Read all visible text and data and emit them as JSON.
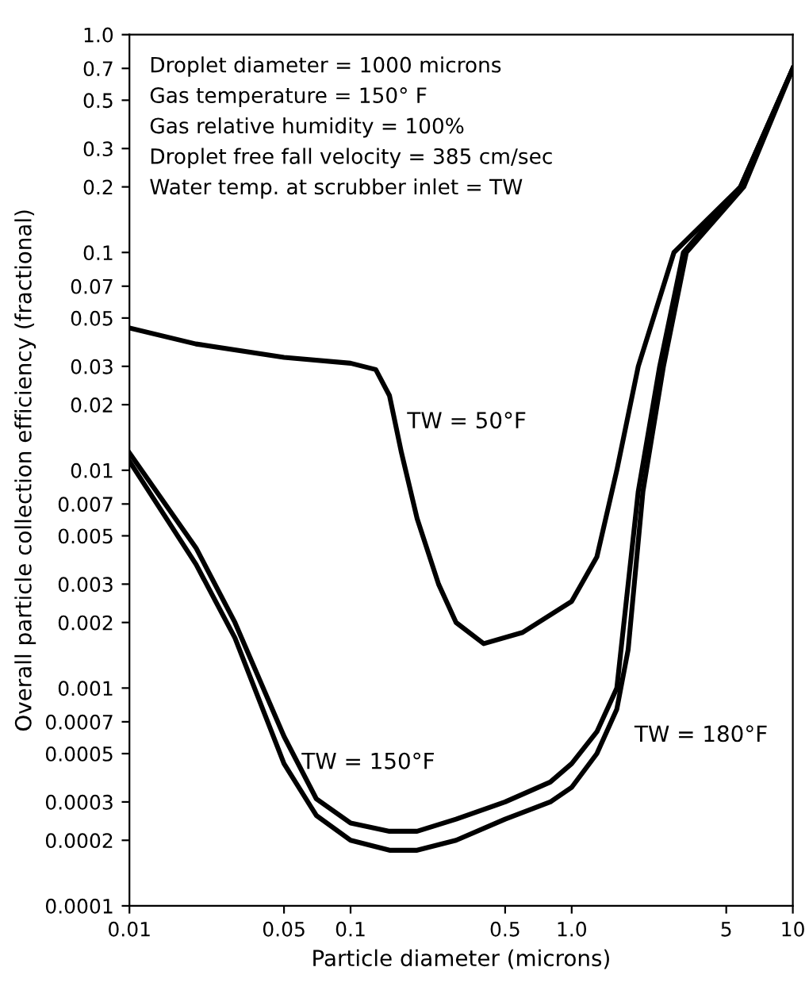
{
  "chart_data": {
    "type": "line",
    "xlabel": "Particle diameter (microns)",
    "ylabel": "Overall particle collection efficiency (fractional)",
    "log": "xy",
    "grid": false,
    "legend": false,
    "marker": "none",
    "line_style": "solid",
    "xlim": [
      0.01,
      10
    ],
    "xticks": [
      0.01,
      0.05,
      0.1,
      0.5,
      {
        "value": 1,
        "label": "1.0"
      },
      5,
      10
    ],
    "ylim": [
      0.0001,
      1
    ],
    "yticks": [
      {
        "value": 1,
        "label": "1.0"
      },
      0.7,
      0.5,
      0.3,
      0.2,
      0.1,
      0.07,
      0.05,
      0.03,
      0.02,
      0.01,
      0.007,
      0.005,
      0.003,
      0.002,
      0.001,
      0.0007,
      0.0005,
      0.0003,
      0.0002,
      0.0001
    ],
    "series": [
      {
        "color": "#000000",
        "x": [
          0.01,
          0.02,
          0.05,
          0.1,
          0.13,
          0.15,
          0.17,
          0.2,
          0.25,
          0.3,
          0.4,
          0.6,
          1.0,
          1.3,
          1.6,
          2.0,
          2.9,
          5.8,
          10
        ],
        "values": [
          0.045,
          0.038,
          0.033,
          0.031,
          0.029,
          0.022,
          0.012,
          0.006,
          0.003,
          0.002,
          0.0016,
          0.0018,
          0.0025,
          0.004,
          0.01,
          0.03,
          0.1,
          0.2,
          0.7
        ]
      },
      {
        "color": "#000000",
        "x": [
          0.01,
          0.02,
          0.03,
          0.05,
          0.07,
          0.1,
          0.15,
          0.2,
          0.3,
          0.5,
          0.8,
          1.0,
          1.3,
          1.6,
          2.0,
          2.5,
          3.2,
          5.8,
          10
        ],
        "values": [
          0.012,
          0.0044,
          0.002,
          0.0006,
          0.00031,
          0.00024,
          0.00022,
          0.00022,
          0.00025,
          0.0003,
          0.00037,
          0.00045,
          0.00063,
          0.001,
          0.008,
          0.03,
          0.1,
          0.2,
          0.7
        ]
      },
      {
        "color": "#000000",
        "x": [
          0.01,
          0.02,
          0.03,
          0.05,
          0.07,
          0.1,
          0.15,
          0.2,
          0.3,
          0.5,
          0.8,
          1.0,
          1.3,
          1.6,
          1.8,
          2.1,
          2.6,
          3.3,
          6,
          10
        ],
        "values": [
          0.011,
          0.0037,
          0.0017,
          0.00045,
          0.00026,
          0.0002,
          0.00018,
          0.00018,
          0.0002,
          0.00025,
          0.0003,
          0.00035,
          0.0005,
          0.0008,
          0.0015,
          0.008,
          0.03,
          0.1,
          0.2,
          0.7
        ]
      }
    ],
    "annotations": [
      "Droplet diameter = 1000 microns",
      "Gas temperature = 150° F",
      "Gas relative humidity = 100%",
      "Droplet free fall velocity = 385 cm/sec",
      "Water temp. at scrubber inlet = TW",
      {
        "text": "TW = 50°F",
        "x": 0.15,
        "y": 0.022
      },
      {
        "text": "TW = 150°F",
        "x": 0.05,
        "y": 0.0006
      },
      {
        "text": "TW = 180°F",
        "x": 1.6,
        "y": 0.0008
      }
    ]
  }
}
